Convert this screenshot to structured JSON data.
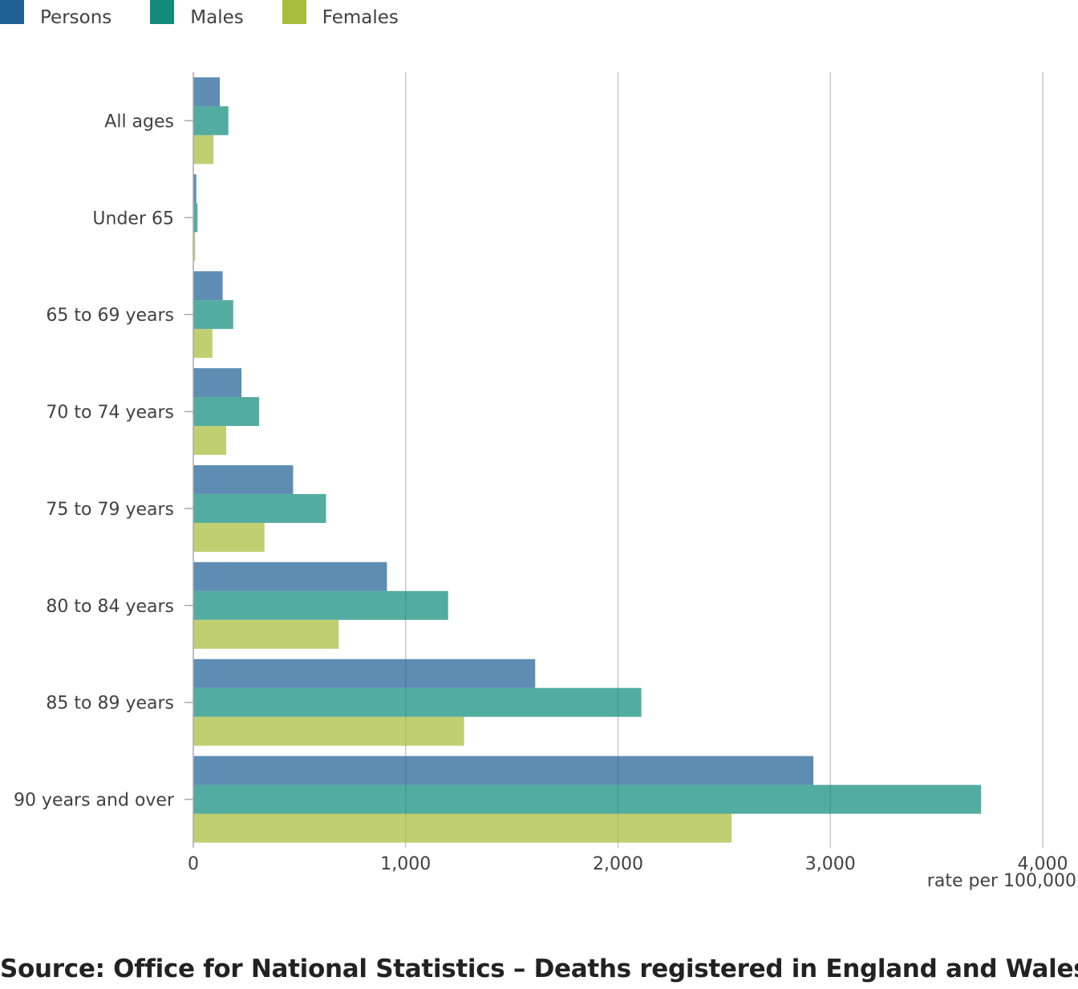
{
  "chart_data": {
    "type": "bar",
    "orientation": "horizontal",
    "categories": [
      "All ages",
      "Under 65",
      "65 to 69 years",
      "70 to 74 years",
      "75 to 79 years",
      "80 to 84 years",
      "85 to 89 years",
      "90 years and over"
    ],
    "series": [
      {
        "name": "Persons",
        "color": "#206095",
        "values": [
          125,
          14,
          138,
          227,
          470,
          912,
          1610,
          2920
        ]
      },
      {
        "name": "Males",
        "color": "#118c7b",
        "values": [
          165,
          20,
          188,
          310,
          625,
          1200,
          2110,
          3710
        ]
      },
      {
        "name": "Females",
        "color": "#a8bd3a",
        "values": [
          95,
          9,
          90,
          155,
          335,
          685,
          1275,
          2535
        ]
      }
    ],
    "xlim": [
      0,
      4000
    ],
    "xticks": [
      0,
      1000,
      2000,
      3000,
      4000
    ],
    "xtick_labels": [
      "0",
      "1,000",
      "2,000",
      "3,000",
      "4,000"
    ],
    "xlabel": "rate per 100,000",
    "grid": "vertical",
    "legend_position": "top-left"
  },
  "source": "Source: Office for National Statistics – Deaths registered in England and Wales"
}
